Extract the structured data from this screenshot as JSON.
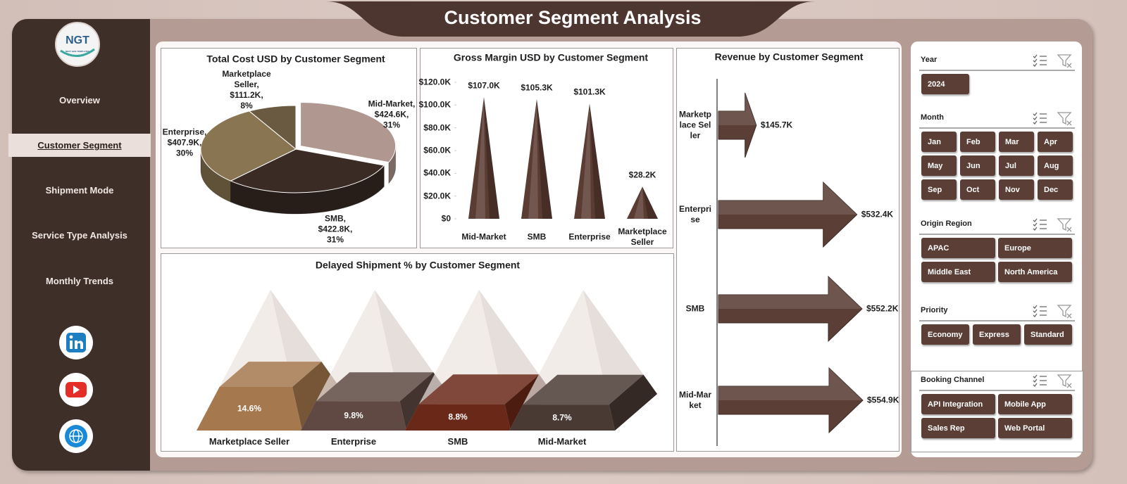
{
  "header": {
    "title": "Customer Segment Analysis",
    "logo": "NGT",
    "logo_tagline": "NEXT GEN TEMPLATES"
  },
  "nav": {
    "items": [
      "Overview",
      "Customer Segment",
      "Shipment Mode",
      "Service Type Analysis",
      "Monthly Trends"
    ],
    "active": 1
  },
  "chart_data": [
    {
      "type": "pie",
      "title": "Total Cost USD by Customer Segment",
      "categories": [
        "Mid-Market",
        "SMB",
        "Enterprise",
        "Marketplace Seller"
      ],
      "values": [
        424600,
        422800,
        407900,
        111200
      ],
      "value_labels": [
        "$424.6K",
        "$422.8K",
        "$407.9K",
        "$111.2K"
      ],
      "percent_labels": [
        "31%",
        "31%",
        "30%",
        "8%"
      ],
      "separator": ",",
      "colors": [
        "#b09890",
        "#3a2b25",
        "#8a7552",
        "#6b5a42"
      ]
    },
    {
      "type": "bar",
      "shape": "cone",
      "title": "Gross Margin USD by Customer Segment",
      "categories": [
        "Mid-Market",
        "SMB",
        "Enterprise",
        "Marketplace Seller"
      ],
      "values": [
        107000,
        105300,
        101300,
        28200
      ],
      "value_labels": [
        "$107.0K",
        "$105.3K",
        "$101.3K",
        "$28.2K"
      ],
      "color": "#5a3c33",
      "ylim": [
        0,
        120000
      ],
      "yticks": [
        {
          "value": 0,
          "label": "$0"
        },
        {
          "value": 20000,
          "label": "$20.0K"
        },
        {
          "value": 40000,
          "label": "$40.0K"
        },
        {
          "value": 60000,
          "label": "$60.0K"
        },
        {
          "value": 80000,
          "label": "$80.0K"
        },
        {
          "value": 100000,
          "label": "$100.0K"
        },
        {
          "value": 120000,
          "label": "$120.0K"
        }
      ]
    },
    {
      "type": "bar",
      "shape": "arrow",
      "orientation": "horizontal",
      "title": "Revenue by Customer Segment",
      "categories": [
        "Marketplace Seller",
        "Enterprise",
        "SMB",
        "Mid-Market"
      ],
      "values": [
        145700,
        532400,
        552200,
        554900
      ],
      "value_labels": [
        "$145.7K",
        "$532.4K",
        "$552.2K",
        "$554.9K"
      ],
      "color": "#5b3e36"
    },
    {
      "type": "bar",
      "shape": "pyramid",
      "title": "Delayed Shipment % by Customer Segment",
      "categories": [
        "Marketplace Seller",
        "Enterprise",
        "SMB",
        "Mid-Market"
      ],
      "values": [
        14.6,
        9.8,
        8.8,
        8.7
      ],
      "value_labels": [
        "14.6%",
        "9.8%",
        "8.8%",
        "8.7%"
      ],
      "colors": [
        "#a5784e",
        "#5f4942",
        "#6a2818",
        "#4a3a34"
      ]
    }
  ],
  "slicers": [
    {
      "title": "Year",
      "items": [
        "2024"
      ]
    },
    {
      "title": "Month",
      "items": [
        "Jan",
        "Feb",
        "Mar",
        "Apr",
        "May",
        "Jun",
        "Jul",
        "Aug",
        "Sep",
        "Oct",
        "Nov",
        "Dec"
      ]
    },
    {
      "title": "Origin Region",
      "items": [
        "APAC",
        "Europe",
        "Middle East",
        "North America"
      ]
    },
    {
      "title": "Priority",
      "items": [
        "Economy",
        "Express",
        "Standard"
      ]
    },
    {
      "title": "Booking Channel",
      "items": [
        "API Integration",
        "Mobile App",
        "Sales Rep",
        "Web Portal"
      ]
    }
  ]
}
